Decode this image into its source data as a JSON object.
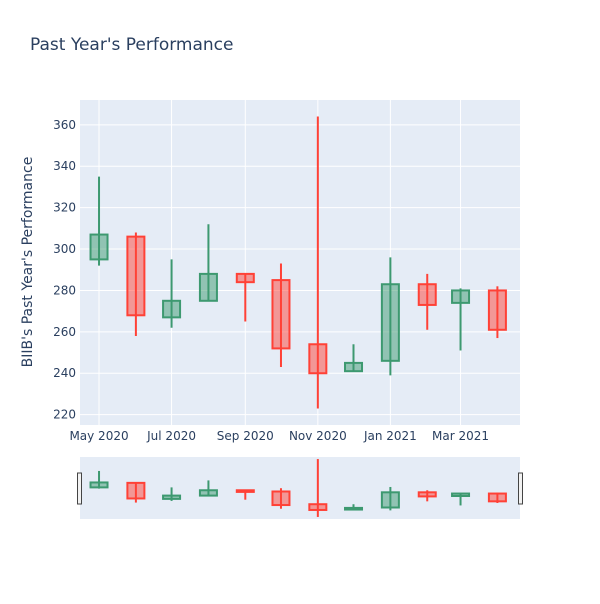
{
  "chart_data": {
    "type": "candlestick",
    "title": "Past Year's Performance",
    "xlabel": "",
    "ylabel": "BIIB's Past Year's Performance",
    "ylim": [
      215,
      372
    ],
    "yticks": [
      220,
      240,
      260,
      280,
      300,
      320,
      340,
      360
    ],
    "xticks": [
      {
        "label": "May 2020",
        "date": "2020-05-01"
      },
      {
        "label": "Jul 2020",
        "date": "2020-07-01"
      },
      {
        "label": "Sep 2020",
        "date": "2020-09-01"
      },
      {
        "label": "Nov 2020",
        "date": "2020-11-01"
      },
      {
        "label": "Jan 2021",
        "date": "2021-01-01"
      },
      {
        "label": "Mar 2021",
        "date": "2021-03-01"
      }
    ],
    "xrange": [
      "2020-04-15",
      "2021-04-20"
    ],
    "increasing_color": "#3d9970",
    "decreasing_color": "#ff4136",
    "grid": true,
    "rangeslider": true,
    "candles": [
      {
        "date": "2020-05-01",
        "open": 295,
        "high": 335,
        "low": 292,
        "close": 307
      },
      {
        "date": "2020-06-01",
        "open": 306,
        "high": 308,
        "low": 258,
        "close": 268
      },
      {
        "date": "2020-07-01",
        "open": 267,
        "high": 295,
        "low": 262,
        "close": 275
      },
      {
        "date": "2020-08-01",
        "open": 275,
        "high": 312,
        "low": 275,
        "close": 288
      },
      {
        "date": "2020-09-01",
        "open": 288,
        "high": 288,
        "low": 265,
        "close": 284
      },
      {
        "date": "2020-10-01",
        "open": 285,
        "high": 293,
        "low": 243,
        "close": 252
      },
      {
        "date": "2020-11-01",
        "open": 254,
        "high": 364,
        "low": 223,
        "close": 240
      },
      {
        "date": "2020-12-01",
        "open": 241,
        "high": 254,
        "low": 241,
        "close": 245
      },
      {
        "date": "2021-01-01",
        "open": 246,
        "high": 296,
        "low": 239,
        "close": 283
      },
      {
        "date": "2021-02-01",
        "open": 283,
        "high": 288,
        "low": 261,
        "close": 273
      },
      {
        "date": "2021-03-01",
        "open": 274,
        "high": 281,
        "low": 251,
        "close": 280
      },
      {
        "date": "2021-04-01",
        "open": 280,
        "high": 282,
        "low": 257,
        "close": 261
      }
    ]
  }
}
